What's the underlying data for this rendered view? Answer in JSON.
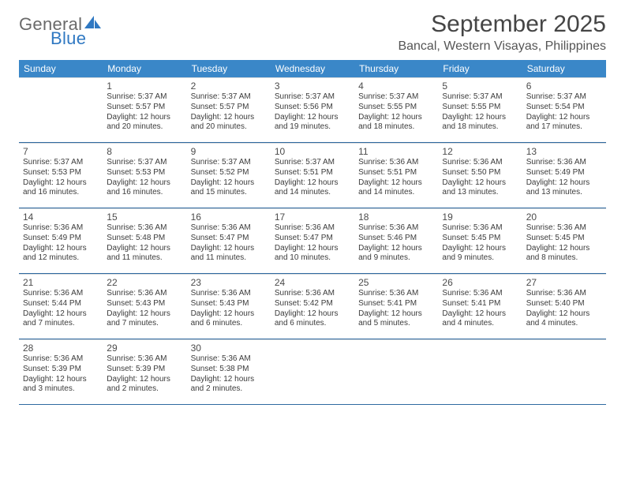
{
  "brand": {
    "word1": "General",
    "word2": "Blue",
    "accent_color": "#2f78c2"
  },
  "title": "September 2025",
  "location": "Bancal, Western Visayas, Philippines",
  "colors": {
    "header_bg": "#3a87c8",
    "header_text": "#ffffff",
    "week_divider": "#2f6aa0",
    "cell_border": "#d7dadd",
    "text": "#3b3b3b"
  },
  "weekdays": [
    "Sunday",
    "Monday",
    "Tuesday",
    "Wednesday",
    "Thursday",
    "Friday",
    "Saturday"
  ],
  "weeks": [
    [
      null,
      {
        "n": "1",
        "sr": "Sunrise: 5:37 AM",
        "ss": "Sunset: 5:57 PM",
        "d1": "Daylight: 12 hours",
        "d2": "and 20 minutes."
      },
      {
        "n": "2",
        "sr": "Sunrise: 5:37 AM",
        "ss": "Sunset: 5:57 PM",
        "d1": "Daylight: 12 hours",
        "d2": "and 20 minutes."
      },
      {
        "n": "3",
        "sr": "Sunrise: 5:37 AM",
        "ss": "Sunset: 5:56 PM",
        "d1": "Daylight: 12 hours",
        "d2": "and 19 minutes."
      },
      {
        "n": "4",
        "sr": "Sunrise: 5:37 AM",
        "ss": "Sunset: 5:55 PM",
        "d1": "Daylight: 12 hours",
        "d2": "and 18 minutes."
      },
      {
        "n": "5",
        "sr": "Sunrise: 5:37 AM",
        "ss": "Sunset: 5:55 PM",
        "d1": "Daylight: 12 hours",
        "d2": "and 18 minutes."
      },
      {
        "n": "6",
        "sr": "Sunrise: 5:37 AM",
        "ss": "Sunset: 5:54 PM",
        "d1": "Daylight: 12 hours",
        "d2": "and 17 minutes."
      }
    ],
    [
      {
        "n": "7",
        "sr": "Sunrise: 5:37 AM",
        "ss": "Sunset: 5:53 PM",
        "d1": "Daylight: 12 hours",
        "d2": "and 16 minutes."
      },
      {
        "n": "8",
        "sr": "Sunrise: 5:37 AM",
        "ss": "Sunset: 5:53 PM",
        "d1": "Daylight: 12 hours",
        "d2": "and 16 minutes."
      },
      {
        "n": "9",
        "sr": "Sunrise: 5:37 AM",
        "ss": "Sunset: 5:52 PM",
        "d1": "Daylight: 12 hours",
        "d2": "and 15 minutes."
      },
      {
        "n": "10",
        "sr": "Sunrise: 5:37 AM",
        "ss": "Sunset: 5:51 PM",
        "d1": "Daylight: 12 hours",
        "d2": "and 14 minutes."
      },
      {
        "n": "11",
        "sr": "Sunrise: 5:36 AM",
        "ss": "Sunset: 5:51 PM",
        "d1": "Daylight: 12 hours",
        "d2": "and 14 minutes."
      },
      {
        "n": "12",
        "sr": "Sunrise: 5:36 AM",
        "ss": "Sunset: 5:50 PM",
        "d1": "Daylight: 12 hours",
        "d2": "and 13 minutes."
      },
      {
        "n": "13",
        "sr": "Sunrise: 5:36 AM",
        "ss": "Sunset: 5:49 PM",
        "d1": "Daylight: 12 hours",
        "d2": "and 13 minutes."
      }
    ],
    [
      {
        "n": "14",
        "sr": "Sunrise: 5:36 AM",
        "ss": "Sunset: 5:49 PM",
        "d1": "Daylight: 12 hours",
        "d2": "and 12 minutes."
      },
      {
        "n": "15",
        "sr": "Sunrise: 5:36 AM",
        "ss": "Sunset: 5:48 PM",
        "d1": "Daylight: 12 hours",
        "d2": "and 11 minutes."
      },
      {
        "n": "16",
        "sr": "Sunrise: 5:36 AM",
        "ss": "Sunset: 5:47 PM",
        "d1": "Daylight: 12 hours",
        "d2": "and 11 minutes."
      },
      {
        "n": "17",
        "sr": "Sunrise: 5:36 AM",
        "ss": "Sunset: 5:47 PM",
        "d1": "Daylight: 12 hours",
        "d2": "and 10 minutes."
      },
      {
        "n": "18",
        "sr": "Sunrise: 5:36 AM",
        "ss": "Sunset: 5:46 PM",
        "d1": "Daylight: 12 hours",
        "d2": "and 9 minutes."
      },
      {
        "n": "19",
        "sr": "Sunrise: 5:36 AM",
        "ss": "Sunset: 5:45 PM",
        "d1": "Daylight: 12 hours",
        "d2": "and 9 minutes."
      },
      {
        "n": "20",
        "sr": "Sunrise: 5:36 AM",
        "ss": "Sunset: 5:45 PM",
        "d1": "Daylight: 12 hours",
        "d2": "and 8 minutes."
      }
    ],
    [
      {
        "n": "21",
        "sr": "Sunrise: 5:36 AM",
        "ss": "Sunset: 5:44 PM",
        "d1": "Daylight: 12 hours",
        "d2": "and 7 minutes."
      },
      {
        "n": "22",
        "sr": "Sunrise: 5:36 AM",
        "ss": "Sunset: 5:43 PM",
        "d1": "Daylight: 12 hours",
        "d2": "and 7 minutes."
      },
      {
        "n": "23",
        "sr": "Sunrise: 5:36 AM",
        "ss": "Sunset: 5:43 PM",
        "d1": "Daylight: 12 hours",
        "d2": "and 6 minutes."
      },
      {
        "n": "24",
        "sr": "Sunrise: 5:36 AM",
        "ss": "Sunset: 5:42 PM",
        "d1": "Daylight: 12 hours",
        "d2": "and 6 minutes."
      },
      {
        "n": "25",
        "sr": "Sunrise: 5:36 AM",
        "ss": "Sunset: 5:41 PM",
        "d1": "Daylight: 12 hours",
        "d2": "and 5 minutes."
      },
      {
        "n": "26",
        "sr": "Sunrise: 5:36 AM",
        "ss": "Sunset: 5:41 PM",
        "d1": "Daylight: 12 hours",
        "d2": "and 4 minutes."
      },
      {
        "n": "27",
        "sr": "Sunrise: 5:36 AM",
        "ss": "Sunset: 5:40 PM",
        "d1": "Daylight: 12 hours",
        "d2": "and 4 minutes."
      }
    ],
    [
      {
        "n": "28",
        "sr": "Sunrise: 5:36 AM",
        "ss": "Sunset: 5:39 PM",
        "d1": "Daylight: 12 hours",
        "d2": "and 3 minutes."
      },
      {
        "n": "29",
        "sr": "Sunrise: 5:36 AM",
        "ss": "Sunset: 5:39 PM",
        "d1": "Daylight: 12 hours",
        "d2": "and 2 minutes."
      },
      {
        "n": "30",
        "sr": "Sunrise: 5:36 AM",
        "ss": "Sunset: 5:38 PM",
        "d1": "Daylight: 12 hours",
        "d2": "and 2 minutes."
      },
      null,
      null,
      null,
      null
    ]
  ]
}
